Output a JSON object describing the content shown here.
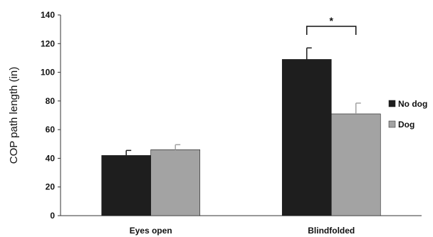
{
  "chart_data": {
    "type": "bar",
    "categories": [
      "Eyes open",
      "Blindfolded"
    ],
    "ylabel": "COP path length (in)",
    "xlabel": "",
    "ylim": [
      0,
      140
    ],
    "yticks": [
      0,
      20,
      40,
      60,
      80,
      100,
      120,
      140
    ],
    "grid": false,
    "legend_position": "right",
    "series": [
      {
        "name": "No dog",
        "values": [
          42,
          109
        ],
        "errors": [
          3.5,
          8
        ],
        "color": "#1e1e1e"
      },
      {
        "name": "Dog",
        "values": [
          46,
          71
        ],
        "errors": [
          3.5,
          7.5
        ],
        "color": "#a3a3a3"
      }
    ],
    "annotation": {
      "text": "*",
      "category": "Blindfolded"
    }
  }
}
